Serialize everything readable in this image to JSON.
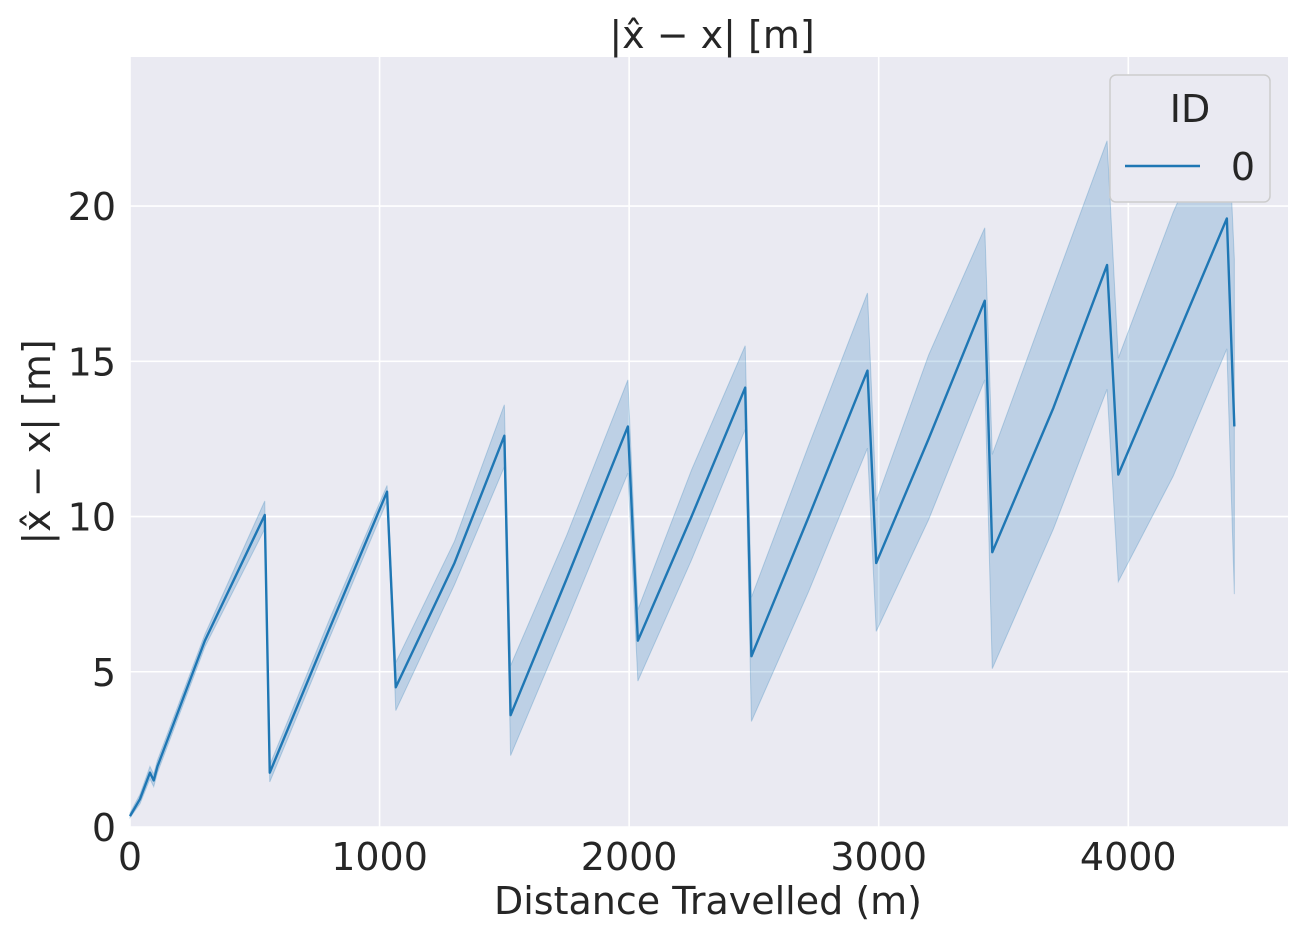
{
  "chart_data": {
    "type": "line",
    "title": "|x̂ − x| [m]",
    "xlabel": "Distance Travelled (m)",
    "ylabel": "|x̂ − x| [m]",
    "xlim": [
      0,
      4640
    ],
    "ylim": [
      0,
      24.8
    ],
    "x_ticks": [
      0,
      1000,
      2000,
      3000,
      4000
    ],
    "y_ticks": [
      0,
      5,
      10,
      15,
      20
    ],
    "grid": true,
    "background": "#eaeaf2",
    "legend": {
      "title": "ID",
      "placement": "top-right",
      "entries": [
        "0"
      ]
    },
    "series": [
      {
        "name": "0",
        "color": "#1f77b4",
        "band_color": "#1f77b4",
        "points": [
          {
            "x": 0,
            "y": 0.35,
            "lo": 0.3,
            "hi": 0.45
          },
          {
            "x": 40,
            "y": 0.9,
            "lo": 0.75,
            "hi": 1.05
          },
          {
            "x": 80,
            "y": 1.75,
            "lo": 1.55,
            "hi": 1.95
          },
          {
            "x": 95,
            "y": 1.5,
            "lo": 1.3,
            "hi": 1.7
          },
          {
            "x": 110,
            "y": 1.95,
            "lo": 1.75,
            "hi": 2.15
          },
          {
            "x": 300,
            "y": 6.0,
            "lo": 5.8,
            "hi": 6.2
          },
          {
            "x": 540,
            "y": 10.05,
            "lo": 9.6,
            "hi": 10.5
          },
          {
            "x": 560,
            "y": 1.75,
            "lo": 1.45,
            "hi": 2.0
          },
          {
            "x": 800,
            "y": 6.4,
            "lo": 6.1,
            "hi": 6.7
          },
          {
            "x": 1030,
            "y": 10.8,
            "lo": 10.5,
            "hi": 11.0
          },
          {
            "x": 1065,
            "y": 4.5,
            "lo": 3.75,
            "hi": 5.3
          },
          {
            "x": 1300,
            "y": 8.5,
            "lo": 7.8,
            "hi": 9.2
          },
          {
            "x": 1500,
            "y": 12.6,
            "lo": 11.6,
            "hi": 13.6
          },
          {
            "x": 1525,
            "y": 3.6,
            "lo": 2.3,
            "hi": 5.2
          },
          {
            "x": 1750,
            "y": 8.0,
            "lo": 6.6,
            "hi": 9.4
          },
          {
            "x": 1995,
            "y": 12.9,
            "lo": 11.4,
            "hi": 14.4
          },
          {
            "x": 2035,
            "y": 6.0,
            "lo": 4.7,
            "hi": 7.0
          },
          {
            "x": 2250,
            "y": 10.0,
            "lo": 8.6,
            "hi": 11.5
          },
          {
            "x": 2465,
            "y": 14.15,
            "lo": 12.8,
            "hi": 15.5
          },
          {
            "x": 2490,
            "y": 5.5,
            "lo": 3.4,
            "hi": 7.4
          },
          {
            "x": 2720,
            "y": 10.0,
            "lo": 7.6,
            "hi": 12.3
          },
          {
            "x": 2955,
            "y": 14.7,
            "lo": 12.2,
            "hi": 17.2
          },
          {
            "x": 2990,
            "y": 8.5,
            "lo": 6.3,
            "hi": 10.5
          },
          {
            "x": 3200,
            "y": 12.5,
            "lo": 9.9,
            "hi": 15.2
          },
          {
            "x": 3425,
            "y": 16.95,
            "lo": 14.4,
            "hi": 19.3
          },
          {
            "x": 3455,
            "y": 8.85,
            "lo": 5.1,
            "hi": 12.0
          },
          {
            "x": 3700,
            "y": 13.5,
            "lo": 9.6,
            "hi": 17.4
          },
          {
            "x": 3915,
            "y": 18.1,
            "lo": 14.1,
            "hi": 22.1
          },
          {
            "x": 3960,
            "y": 11.35,
            "lo": 7.9,
            "hi": 15.1
          },
          {
            "x": 4180,
            "y": 15.5,
            "lo": 11.3,
            "hi": 19.8
          },
          {
            "x": 4395,
            "y": 19.6,
            "lo": 15.4,
            "hi": 23.7
          },
          {
            "x": 4425,
            "y": 12.9,
            "lo": 7.5,
            "hi": 18.3
          }
        ]
      }
    ]
  }
}
